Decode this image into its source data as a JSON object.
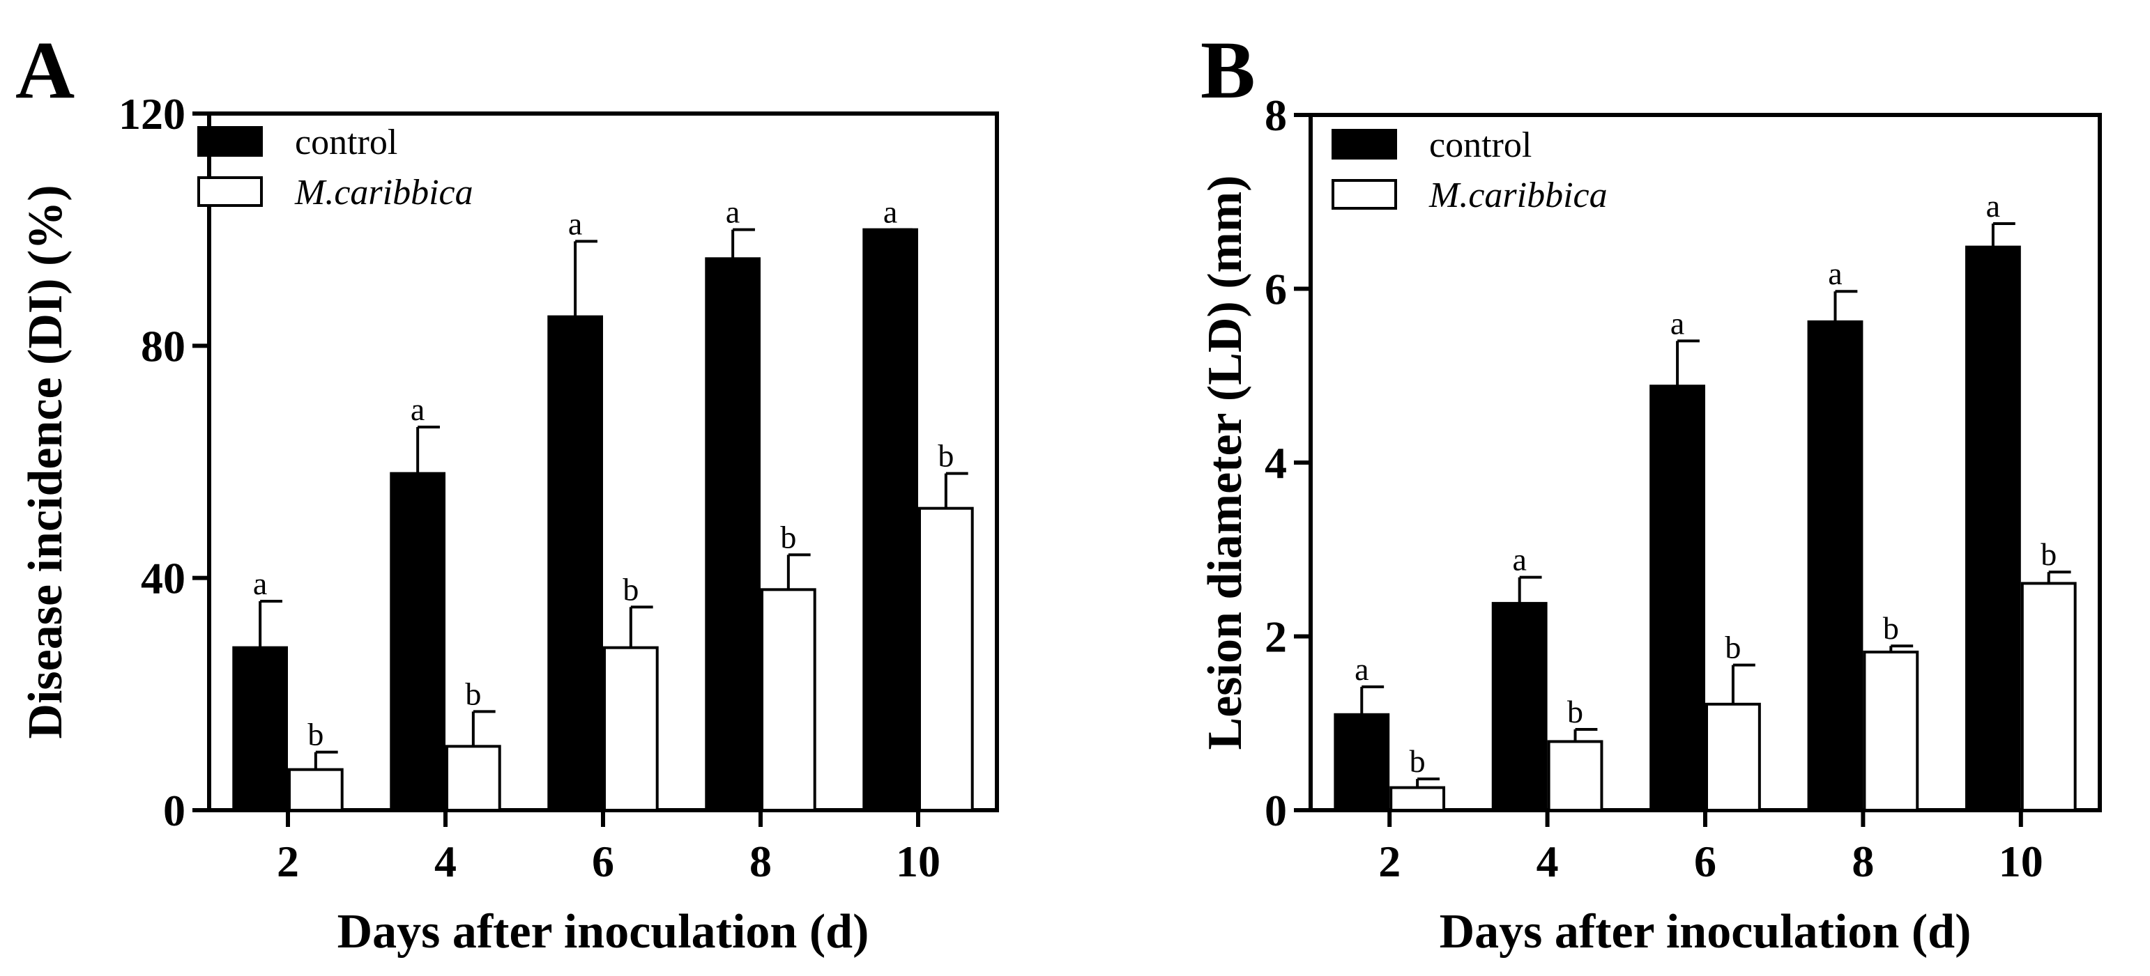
{
  "figure": {
    "colors": {
      "control": "#000000",
      "treatment": "#ffffff",
      "stroke": "#000000"
    }
  },
  "chart_data": [
    {
      "type": "bar",
      "panel_label": "A",
      "title": "",
      "xlabel": "Days after inoculation (d)",
      "ylabel": "Disease incidence (DI) (%)",
      "ylim": [
        0,
        120
      ],
      "yticks": [
        "0",
        "40",
        "80",
        "120"
      ],
      "yticks_values": [
        0,
        40,
        80,
        120
      ],
      "categories": [
        "2",
        "4",
        "6",
        "8",
        "10"
      ],
      "legend_position": "top-left",
      "series": [
        {
          "name": "control",
          "italic": false,
          "fill": "#000000",
          "values": [
            28,
            58,
            85,
            95,
            100
          ],
          "errors": [
            8,
            8,
            13,
            5,
            0
          ],
          "labels": [
            "a",
            "a",
            "a",
            "a",
            "a"
          ]
        },
        {
          "name": "M.caribbica",
          "italic": true,
          "fill": "#ffffff",
          "values": [
            7,
            11,
            28,
            38,
            52
          ],
          "errors": [
            3,
            6,
            7,
            6,
            6
          ],
          "labels": [
            "b",
            "b",
            "b",
            "b",
            "b"
          ]
        }
      ]
    },
    {
      "type": "bar",
      "panel_label": "B",
      "title": "",
      "xlabel": "Days after inoculation (d)",
      "ylabel": "Lesion diameter (LD) (mm)",
      "ylim": [
        0,
        8
      ],
      "yticks": [
        "0",
        "2",
        "4",
        "6",
        "8"
      ],
      "yticks_values": [
        0,
        2,
        4,
        6,
        8
      ],
      "categories": [
        "2",
        "4",
        "6",
        "8",
        "10"
      ],
      "legend_position": "top-left",
      "series": [
        {
          "name": "control",
          "italic": false,
          "fill": "#000000",
          "values": [
            1.1,
            2.38,
            4.88,
            5.62,
            6.48
          ],
          "errors": [
            0.32,
            0.3,
            0.52,
            0.35,
            0.27
          ],
          "labels": [
            "a",
            "a",
            "a",
            "a",
            "a"
          ]
        },
        {
          "name": "M.caribbica",
          "italic": true,
          "fill": "#ffffff",
          "values": [
            0.26,
            0.79,
            1.22,
            1.82,
            2.61
          ],
          "errors": [
            0.1,
            0.14,
            0.45,
            0.07,
            0.13
          ],
          "labels": [
            "b",
            "b",
            "b",
            "b",
            "b"
          ]
        }
      ]
    }
  ]
}
